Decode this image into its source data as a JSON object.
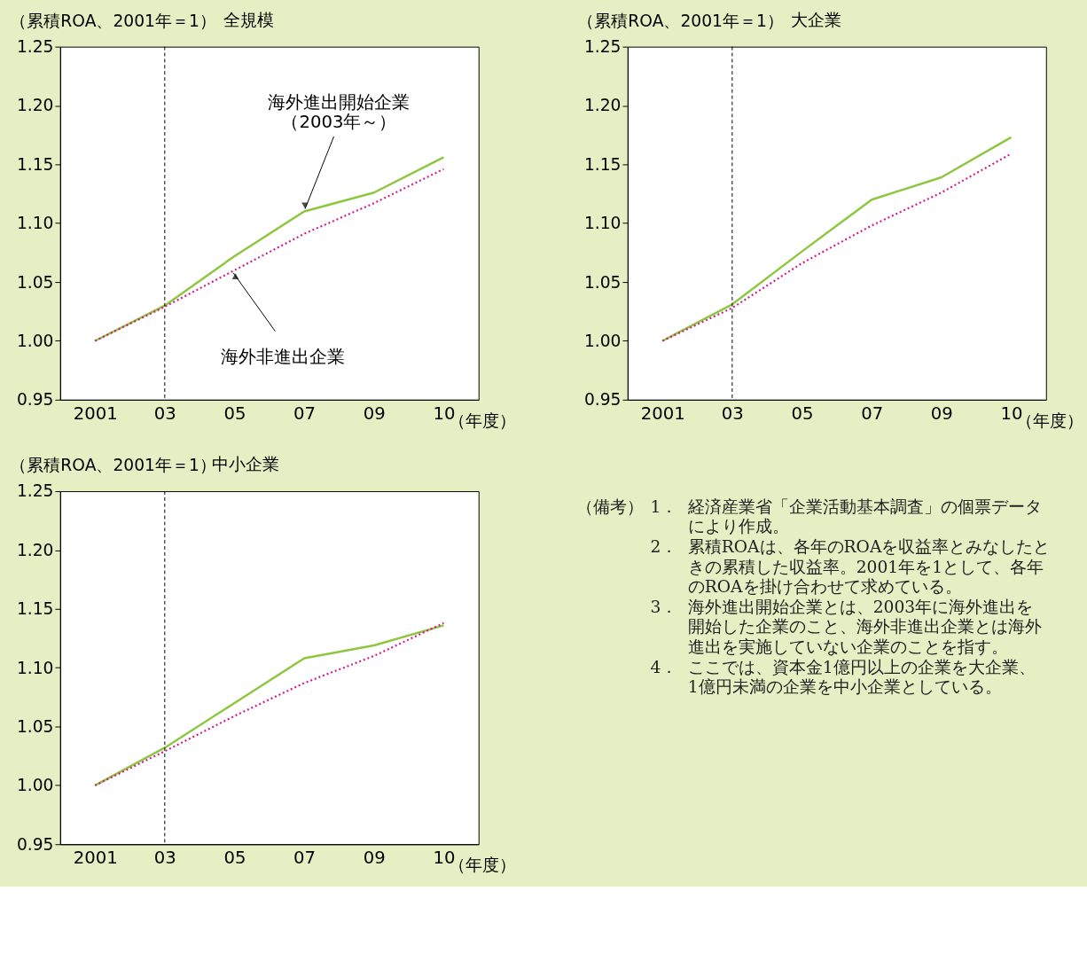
{
  "chart_data": [
    {
      "type": "line",
      "title": "全規模",
      "ylabel": "（累積ROA、2001年＝1）",
      "xlabel": "（年度）",
      "categories": [
        "2001",
        "03",
        "05",
        "07",
        "09",
        "10"
      ],
      "series": [
        {
          "color": "#8dc63f",
          "line_style": "solid",
          "values": [
            1.0,
            1.03,
            1.072,
            1.11,
            1.126,
            1.156
          ]
        },
        {
          "color": "#d6168b",
          "line_style": "dotted",
          "values": [
            1.0,
            1.029,
            1.06,
            1.091,
            1.117,
            1.146
          ]
        }
      ],
      "ylim": [
        0.95,
        1.25
      ],
      "yticks": [
        {
          "value": 0.95,
          "label": "0.95"
        },
        {
          "value": 1.0,
          "label": "1.00"
        },
        {
          "value": 1.05,
          "label": "1.05"
        },
        {
          "value": 1.1,
          "label": "1.10"
        },
        {
          "value": 1.15,
          "label": "1.15"
        },
        {
          "value": 1.2,
          "label": "1.20"
        },
        {
          "value": 1.25,
          "label": "1.25"
        }
      ],
      "ref_lines": [
        {
          "axis": "x",
          "value": "03",
          "color": "#000000",
          "line_style": "dashed"
        }
      ],
      "grid": false,
      "marker": "none",
      "annotations": [
        {
          "text": "海外進出開始企業（2003年～）",
          "x": "07",
          "y": 1.11
        },
        {
          "text": "海外非進出企業",
          "x": "05",
          "y": 1.06
        }
      ]
    },
    {
      "type": "line",
      "title": "大企業",
      "ylabel": "（累積ROA、2001年＝1）",
      "xlabel": "（年度）",
      "categories": [
        "2001",
        "03",
        "05",
        "07",
        "09",
        "10"
      ],
      "series": [
        {
          "color": "#8dc63f",
          "line_style": "solid",
          "values": [
            1.0,
            1.031,
            1.076,
            1.12,
            1.139,
            1.173
          ]
        },
        {
          "color": "#d6168b",
          "line_style": "dotted",
          "values": [
            1.0,
            1.028,
            1.066,
            1.098,
            1.126,
            1.159
          ]
        }
      ],
      "ylim": [
        0.95,
        1.25
      ],
      "yticks": [
        {
          "value": 0.95,
          "label": "0.95"
        },
        {
          "value": 1.0,
          "label": "1.00"
        },
        {
          "value": 1.05,
          "label": "1.05"
        },
        {
          "value": 1.1,
          "label": "1.10"
        },
        {
          "value": 1.15,
          "label": "1.15"
        },
        {
          "value": 1.2,
          "label": "1.20"
        },
        {
          "value": 1.25,
          "label": "1.25"
        }
      ],
      "ref_lines": [
        {
          "axis": "x",
          "value": "03",
          "color": "#000000",
          "line_style": "dashed"
        }
      ],
      "grid": false,
      "marker": "none"
    },
    {
      "type": "line",
      "title": "中小企業",
      "ylabel": "（累積ROA、2001年＝1）",
      "xlabel": "（年度）",
      "categories": [
        "2001",
        "03",
        "05",
        "07",
        "09",
        "10"
      ],
      "series": [
        {
          "color": "#8dc63f",
          "line_style": "solid",
          "values": [
            1.0,
            1.032,
            1.07,
            1.108,
            1.119,
            1.136
          ]
        },
        {
          "color": "#d6168b",
          "line_style": "dotted",
          "values": [
            1.0,
            1.029,
            1.059,
            1.087,
            1.11,
            1.138
          ]
        }
      ],
      "ylim": [
        0.95,
        1.25
      ],
      "yticks": [
        {
          "value": 0.95,
          "label": "0.95"
        },
        {
          "value": 1.0,
          "label": "1.00"
        },
        {
          "value": 1.05,
          "label": "1.05"
        },
        {
          "value": 1.1,
          "label": "1.10"
        },
        {
          "value": 1.15,
          "label": "1.15"
        },
        {
          "value": 1.2,
          "label": "1.20"
        },
        {
          "value": 1.25,
          "label": "1.25"
        }
      ],
      "ref_lines": [
        {
          "axis": "x",
          "value": "03",
          "color": "#000000",
          "line_style": "dashed"
        }
      ],
      "grid": false,
      "marker": "none"
    },
    {
      "type": "other",
      "title": "（備考）",
      "annotations": [
        "1．経済産業省「企業活動基本調査」の個票データにより作成。",
        "2．累積ROAは、各年のROAを収益率とみなしたときの累積した収益率。2001年を1として、各年のROAを掛け合わせて求めている。",
        "3．海外進出開始企業とは、2003年に海外進出を開始した企業のこと、海外非進出企業とは海外進出を実施していない企業のことを指す。",
        "4．ここでは、資本金1億円以上の企業を大企業、1億円未満の企業を中小企業としている。"
      ]
    }
  ]
}
